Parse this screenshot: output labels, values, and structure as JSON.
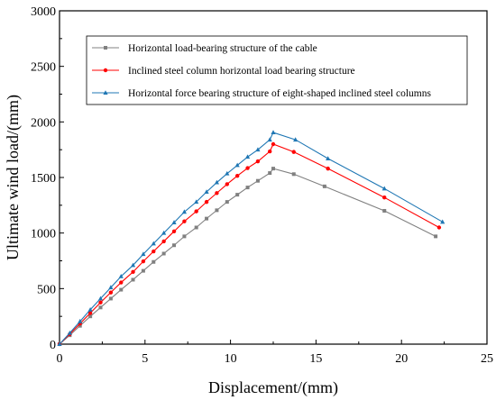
{
  "chart_data": {
    "type": "line",
    "title": "",
    "xlabel": "Displacement/(mm)",
    "ylabel": "Ultimate wind load/(mm)",
    "xlim": [
      0,
      25
    ],
    "ylim": [
      0,
      3000
    ],
    "xticks": [
      0,
      5,
      10,
      15,
      20,
      25
    ],
    "yticks": [
      0,
      500,
      1000,
      1500,
      2000,
      2500,
      3000
    ],
    "grid": false,
    "legend": "top-right",
    "series": [
      {
        "name": "Horizontal load-bearing structure of the cable",
        "color": "#808080",
        "marker": "square",
        "x": [
          0,
          0.6,
          1.2,
          1.8,
          2.4,
          3.0,
          3.6,
          4.3,
          4.9,
          5.5,
          6.1,
          6.7,
          7.3,
          8.0,
          8.6,
          9.2,
          9.8,
          10.4,
          11.0,
          11.6,
          12.3,
          12.5,
          13.7,
          15.5,
          19.0,
          22.0
        ],
        "y": [
          0,
          80,
          165,
          250,
          330,
          410,
          490,
          580,
          660,
          740,
          815,
          890,
          970,
          1050,
          1130,
          1205,
          1280,
          1345,
          1410,
          1470,
          1540,
          1580,
          1530,
          1420,
          1200,
          970
        ]
      },
      {
        "name": "Inclined steel column horizontal load bearing structure",
        "color": "#ff0000",
        "marker": "circle",
        "x": [
          0,
          0.6,
          1.2,
          1.8,
          2.4,
          3.0,
          3.6,
          4.3,
          4.9,
          5.5,
          6.1,
          6.7,
          7.3,
          8.0,
          8.6,
          9.2,
          9.8,
          10.4,
          11.0,
          11.6,
          12.3,
          12.5,
          13.7,
          15.7,
          19.0,
          22.2
        ],
        "y": [
          0,
          90,
          185,
          280,
          375,
          465,
          555,
          650,
          745,
          835,
          925,
          1015,
          1105,
          1195,
          1280,
          1360,
          1440,
          1515,
          1585,
          1645,
          1735,
          1800,
          1730,
          1580,
          1320,
          1050
        ]
      },
      {
        "name": "Horizontal force bearing structure of eight-shaped inclined steel columns",
        "color": "#1f77b4",
        "marker": "triangle",
        "x": [
          0,
          0.6,
          1.2,
          1.8,
          2.4,
          3.0,
          3.6,
          4.3,
          4.9,
          5.5,
          6.1,
          6.7,
          7.3,
          8.0,
          8.6,
          9.2,
          9.8,
          10.4,
          11.0,
          11.6,
          12.3,
          12.5,
          13.8,
          15.7,
          19.0,
          22.4
        ],
        "y": [
          0,
          100,
          205,
          310,
          410,
          510,
          610,
          710,
          810,
          905,
          1000,
          1095,
          1190,
          1280,
          1370,
          1455,
          1535,
          1610,
          1685,
          1750,
          1840,
          1905,
          1840,
          1670,
          1400,
          1100
        ]
      }
    ]
  }
}
